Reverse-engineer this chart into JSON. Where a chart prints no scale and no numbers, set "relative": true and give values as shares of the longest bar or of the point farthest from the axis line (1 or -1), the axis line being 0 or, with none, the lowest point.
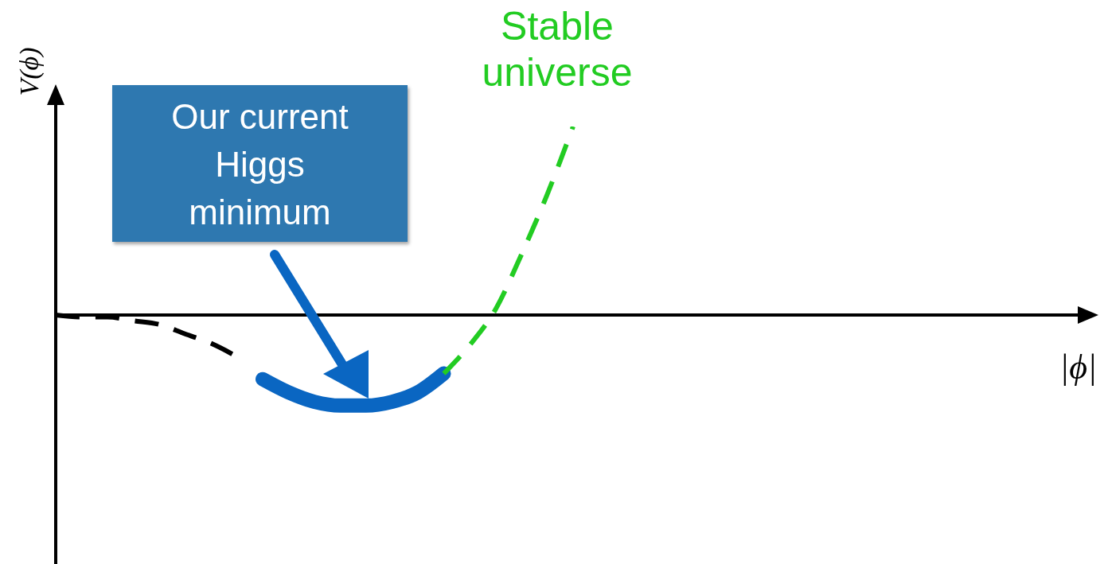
{
  "chart_data": {
    "type": "line",
    "relative": true,
    "xlabel": "|ϕ|",
    "ylabel": "V(ϕ)",
    "annotations": [
      "Our current Higgs minimum"
    ],
    "legend": false,
    "grid": false,
    "marker": "none",
    "categories": [
      null,
      null,
      null,
      null,
      null,
      null,
      null,
      null,
      null,
      null,
      null,
      null,
      null,
      null,
      null,
      null,
      null,
      null,
      null,
      null,
      null,
      null,
      null,
      null,
      null,
      null,
      null,
      null,
      null,
      null,
      null,
      null,
      null,
      null,
      null,
      null,
      null,
      null,
      null,
      null,
      null
    ],
    "series": [
      {
        "color": "#000000",
        "line_style": "dashed",
        "values": [
          0,
          -0.01,
          -0.01,
          -0.03,
          -0.05,
          -0.1,
          -0.15,
          -0.22,
          null,
          null,
          null,
          null,
          null,
          null,
          null,
          null,
          null,
          null,
          null,
          null,
          null,
          null,
          null,
          null,
          null,
          null,
          null,
          null,
          null,
          null,
          null,
          null,
          null,
          null,
          null,
          null,
          null,
          null,
          null,
          null,
          null
        ]
      },
      {
        "color": "#0a66c2",
        "line_style": "solid",
        "values": [
          null,
          null,
          null,
          null,
          null,
          null,
          null,
          null,
          -0.34,
          -0.41,
          -0.46,
          -0.48,
          -0.48,
          -0.46,
          -0.41,
          -0.31,
          null,
          null,
          null,
          null,
          null,
          null,
          null,
          null,
          null,
          null,
          null,
          null,
          null,
          null,
          null,
          null,
          null,
          null,
          null,
          null,
          null,
          null,
          null,
          null,
          null
        ]
      },
      {
        "name": "Stable universe",
        "color": "#22cc22",
        "line_style": "dashed",
        "values": [
          null,
          null,
          null,
          null,
          null,
          null,
          null,
          null,
          null,
          null,
          null,
          null,
          null,
          null,
          null,
          -0.31,
          -0.16,
          0.03,
          0.32,
          0.64,
          1.0,
          null,
          null,
          null,
          null,
          null,
          null,
          null,
          null,
          null,
          null,
          null,
          null,
          null,
          null,
          null,
          null,
          null,
          null,
          null,
          null
        ]
      }
    ]
  }
}
